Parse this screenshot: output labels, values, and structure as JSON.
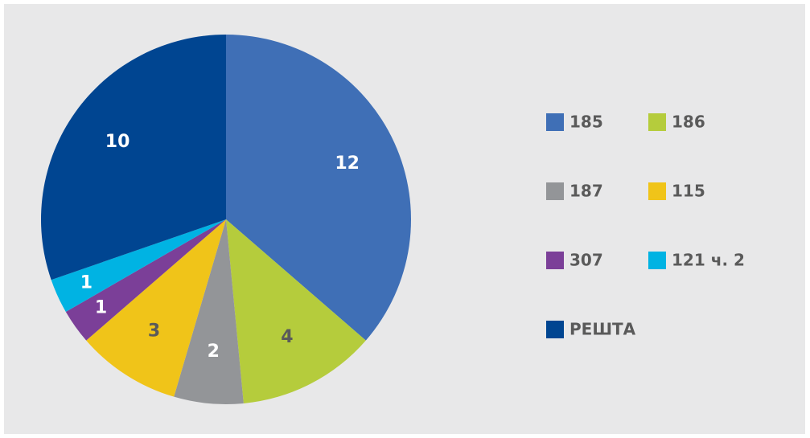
{
  "chart_data": {
    "type": "pie",
    "categories": [
      "185",
      "186",
      "187",
      "115",
      "307",
      "121 ч. 2",
      "РЕШТА"
    ],
    "values": [
      12,
      4,
      2,
      3,
      1,
      1,
      10
    ],
    "colors": [
      "#3f6fb6",
      "#b5cc3c",
      "#939598",
      "#f0c419",
      "#7b3f98",
      "#00b3e3",
      "#004591"
    ]
  }
}
